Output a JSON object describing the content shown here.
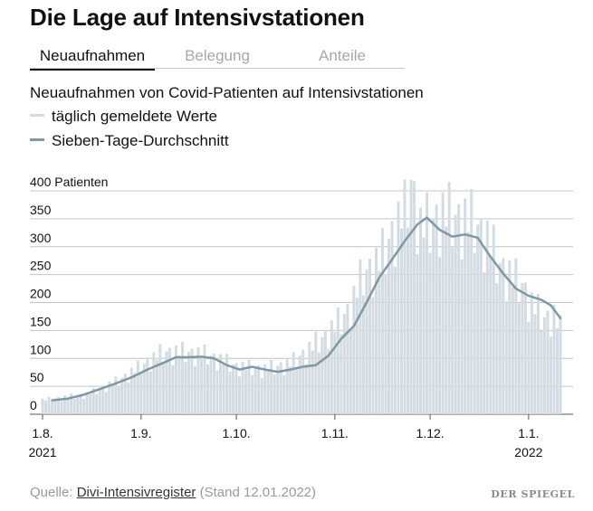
{
  "headline": "Die Lage auf Intensivstationen",
  "tabs": [
    {
      "label": "Neuaufnahmen",
      "active": true
    },
    {
      "label": "Belegung",
      "active": false
    },
    {
      "label": "Anteile",
      "active": false
    }
  ],
  "chart_data": {
    "type": "line",
    "title": "Neuaufnahmen von Covid-Patienten auf Intensivstationen",
    "ylabel": "",
    "ylim": [
      0,
      400
    ],
    "y_ticks": [
      {
        "value": 400,
        "label": "400 Patienten"
      },
      {
        "value": 350,
        "label": "350"
      },
      {
        "value": 300,
        "label": "300"
      },
      {
        "value": 250,
        "label": "250"
      },
      {
        "value": 200,
        "label": "200"
      },
      {
        "value": 150,
        "label": "150"
      },
      {
        "value": 100,
        "label": "100"
      },
      {
        "value": 50,
        "label": "50"
      },
      {
        "value": 0,
        "label": "0"
      }
    ],
    "x_ticks": [
      {
        "date": "2021-08-01",
        "label": "1.8.",
        "year": "2021"
      },
      {
        "date": "2021-09-01",
        "label": "1.9.",
        "year": ""
      },
      {
        "date": "2021-10-01",
        "label": "1.10.",
        "year": ""
      },
      {
        "date": "2021-11-01",
        "label": "1.11.",
        "year": ""
      },
      {
        "date": "2021-12-01",
        "label": "1.12.",
        "year": ""
      },
      {
        "date": "2022-01-01",
        "label": "1.1.",
        "year": "2022"
      }
    ],
    "xlim": [
      "2021-07-28",
      "2022-01-15"
    ],
    "grid": true,
    "legend": [
      {
        "name": "täglich gemeldete Werte",
        "color": "#d3dce2"
      },
      {
        "name": "Sieben-Tage-Durchschnitt",
        "color": "#7f98a6"
      }
    ],
    "series": [
      {
        "name": "täglich gemeldete Werte",
        "style": "bar",
        "color": "#d3dce2",
        "points": [
          [
            "2021-08-01",
            25
          ],
          [
            "2021-08-15",
            35
          ],
          [
            "2021-08-25",
            60
          ],
          [
            "2021-09-01",
            85
          ],
          [
            "2021-09-08",
            110
          ],
          [
            "2021-09-15",
            110
          ],
          [
            "2021-09-22",
            105
          ],
          [
            "2021-10-01",
            85
          ],
          [
            "2021-10-10",
            80
          ],
          [
            "2021-10-18",
            90
          ],
          [
            "2021-10-25",
            120
          ],
          [
            "2021-11-01",
            155
          ],
          [
            "2021-11-06",
            190
          ],
          [
            "2021-11-10",
            250
          ],
          [
            "2021-11-15",
            270
          ],
          [
            "2021-11-19",
            320
          ],
          [
            "2021-11-22",
            350
          ],
          [
            "2021-11-25",
            415
          ],
          [
            "2021-11-28",
            330
          ],
          [
            "2021-12-01",
            340
          ],
          [
            "2021-12-05",
            355
          ],
          [
            "2021-12-09",
            350
          ],
          [
            "2021-12-12",
            345
          ],
          [
            "2021-12-15",
            340
          ],
          [
            "2021-12-19",
            310
          ],
          [
            "2021-12-23",
            265
          ],
          [
            "2021-12-27",
            240
          ],
          [
            "2021-12-30",
            230
          ],
          [
            "2022-01-02",
            195
          ],
          [
            "2022-01-06",
            170
          ],
          [
            "2022-01-09",
            175
          ],
          [
            "2022-01-11",
            150
          ]
        ]
      },
      {
        "name": "Sieben-Tage-Durchschnitt",
        "style": "line",
        "color": "#7f98a6",
        "points": [
          [
            "2021-08-04",
            25
          ],
          [
            "2021-08-09",
            28
          ],
          [
            "2021-08-14",
            35
          ],
          [
            "2021-08-19",
            45
          ],
          [
            "2021-08-24",
            55
          ],
          [
            "2021-08-29",
            66
          ],
          [
            "2021-09-03",
            80
          ],
          [
            "2021-09-08",
            92
          ],
          [
            "2021-09-12",
            102
          ],
          [
            "2021-09-16",
            102
          ],
          [
            "2021-09-20",
            103
          ],
          [
            "2021-09-24",
            100
          ],
          [
            "2021-09-28",
            88
          ],
          [
            "2021-10-02",
            80
          ],
          [
            "2021-10-06",
            85
          ],
          [
            "2021-10-10",
            80
          ],
          [
            "2021-10-14",
            76
          ],
          [
            "2021-10-18",
            80
          ],
          [
            "2021-10-22",
            85
          ],
          [
            "2021-10-26",
            88
          ],
          [
            "2021-10-30",
            105
          ],
          [
            "2021-11-03",
            135
          ],
          [
            "2021-11-07",
            158
          ],
          [
            "2021-11-11",
            200
          ],
          [
            "2021-11-15",
            245
          ],
          [
            "2021-11-19",
            277
          ],
          [
            "2021-11-23",
            310
          ],
          [
            "2021-11-27",
            340
          ],
          [
            "2021-11-30",
            352
          ],
          [
            "2021-12-04",
            330
          ],
          [
            "2021-12-08",
            318
          ],
          [
            "2021-12-12",
            322
          ],
          [
            "2021-12-16",
            316
          ],
          [
            "2021-12-20",
            282
          ],
          [
            "2021-12-24",
            252
          ],
          [
            "2021-12-28",
            225
          ],
          [
            "2022-01-01",
            212
          ],
          [
            "2022-01-05",
            205
          ],
          [
            "2022-01-08",
            195
          ],
          [
            "2022-01-11",
            172
          ]
        ]
      }
    ]
  },
  "source": {
    "prefix": "Quelle: ",
    "link": "Divi-Intensivregister",
    "suffix": " (Stand 12.01.2022)"
  },
  "brand": "DER SPIEGEL"
}
